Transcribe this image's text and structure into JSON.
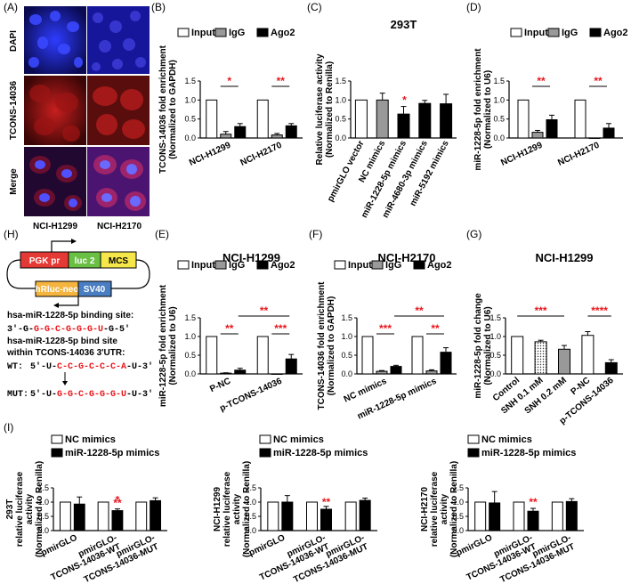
{
  "figure": {
    "panel_labels": {
      "A": "(A)",
      "B": "(B)",
      "C": "(C)",
      "D": "(D)",
      "E": "(E)",
      "F": "(F)",
      "G": "(G)",
      "H": "(H)",
      "I": "(I)"
    },
    "micrographs": {
      "rows": [
        "DAPI",
        "TCONS-14036",
        "Merge"
      ],
      "cols": [
        "NCI-H1299",
        "NCI-H2170"
      ]
    },
    "construct": {
      "top_boxes": [
        "PGK pr",
        "luc 2",
        "MCS"
      ],
      "bottom_boxes": [
        "hRluc-neo",
        "SV40"
      ],
      "line1": "hsa-miR-1228-5p binding site:",
      "line2_pre": "3'-G-",
      "line2_red": "G-G-C-G-G-G-U",
      "line2_post": "-G-5'",
      "line3": "hsa-miR-1228-5p bind site",
      "line4": "within TCONS-14036 3'UTR:",
      "wt_label": "WT:",
      "wt_pre": "5'-U-",
      "wt_red": "C-C-G-C-C-C-A",
      "wt_post": "-U-3'",
      "mut_label": "MUT:",
      "mut_pre": "5'-U-",
      "mut_red": "G-G-C-G-G-G-U",
      "mut_post": "-U-3'"
    }
  },
  "chart_data": [
    {
      "id": "B",
      "type": "bar",
      "title": "",
      "ylabel": "TCONS-14036 fold enrichment (Normalized to GAPDH)",
      "ylim": [
        0,
        1.5
      ],
      "yticks": [
        "0.0",
        "0.5",
        "1.0",
        "1.5"
      ],
      "legend": [
        "Input",
        "IgG",
        "Ago2"
      ],
      "categories": [
        "NCI-H1299",
        "NCI-H2170"
      ],
      "series": [
        {
          "name": "Input",
          "values": [
            1.0,
            1.0
          ],
          "err": [
            0,
            0
          ]
        },
        {
          "name": "IgG",
          "values": [
            0.1,
            0.08
          ],
          "err": [
            0.07,
            0.04
          ]
        },
        {
          "name": "Ago2",
          "values": [
            0.3,
            0.32
          ],
          "err": [
            0.08,
            0.06
          ]
        }
      ],
      "annotations": [
        "*",
        "**"
      ]
    },
    {
      "id": "C",
      "type": "bar",
      "title": "293T",
      "ylabel": "Relative luciferase activity (Normalized to Renilla)",
      "ylim": [
        0,
        1.5
      ],
      "yticks": [
        "0.0",
        "0.5",
        "1.0",
        "1.5"
      ],
      "categories": [
        "pmirGLO vector",
        "NC mimics",
        "miR-1228-5p mimics",
        "miR-4680-3p mimics",
        "miR-5192 mimics"
      ],
      "values": [
        1.0,
        1.0,
        0.63,
        0.91,
        0.9
      ],
      "err": [
        0,
        0.18,
        0.2,
        0.08,
        0.25
      ],
      "annotations": [
        "*"
      ]
    },
    {
      "id": "D",
      "type": "bar",
      "title": "",
      "ylabel": "miR-1228-5p fold enrichment (Normalized to U6)",
      "ylim": [
        0,
        1.5
      ],
      "yticks": [
        "0.0",
        "0.5",
        "1.0",
        "1.5"
      ],
      "legend": [
        "Input",
        "IgG",
        "Ago2"
      ],
      "categories": [
        "NCI-H1299",
        "NCI-H2170"
      ],
      "series": [
        {
          "name": "Input",
          "values": [
            1.0,
            1.0
          ],
          "err": [
            0,
            0
          ]
        },
        {
          "name": "IgG",
          "values": [
            0.15,
            0.0
          ],
          "err": [
            0.05,
            0
          ]
        },
        {
          "name": "Ago2",
          "values": [
            0.48,
            0.26
          ],
          "err": [
            0.12,
            0.12
          ]
        }
      ],
      "annotations": [
        "**",
        "**"
      ]
    },
    {
      "id": "E",
      "type": "bar",
      "title": "NCI-H1299",
      "ylabel": "miR-1228-5p fold enrichment (Normalized to U6)",
      "ylim": [
        0,
        1.5
      ],
      "yticks": [
        "0.0",
        "0.5",
        "1.0",
        "1.5"
      ],
      "legend": [
        "Input",
        "IgG",
        "Ago2"
      ],
      "categories": [
        "P-NC",
        "p-TCONS-14036"
      ],
      "series": [
        {
          "name": "Input",
          "values": [
            1.0,
            1.0
          ],
          "err": [
            0,
            0
          ]
        },
        {
          "name": "IgG",
          "values": [
            0.02,
            0.0
          ],
          "err": [
            0.01,
            0
          ]
        },
        {
          "name": "Ago2",
          "values": [
            0.1,
            0.4
          ],
          "err": [
            0.05,
            0.12
          ]
        }
      ],
      "annotations": [
        "**",
        "***",
        "**"
      ]
    },
    {
      "id": "F",
      "type": "bar",
      "title": "NCI-H2170",
      "ylabel": "TCONS-14036 fold enrichment (Normalized to GAPDH)",
      "ylim": [
        0,
        1.5
      ],
      "yticks": [
        "0.0",
        "0.5",
        "1.0",
        "1.5"
      ],
      "legend": [
        "Input",
        "IgG",
        "Ago2"
      ],
      "categories": [
        "NC mimics",
        "miR-1228-5p mimics"
      ],
      "series": [
        {
          "name": "Input",
          "values": [
            1.0,
            1.0
          ],
          "err": [
            0,
            0
          ]
        },
        {
          "name": "IgG",
          "values": [
            0.07,
            0.08
          ],
          "err": [
            0.02,
            0.03
          ]
        },
        {
          "name": "Ago2",
          "values": [
            0.2,
            0.58
          ],
          "err": [
            0.03,
            0.12
          ]
        }
      ],
      "annotations": [
        "***",
        "**",
        "**"
      ]
    },
    {
      "id": "G",
      "type": "bar",
      "title": "NCI-H1299",
      "ylabel": "miR-1228-5p fold change (Normalized to U6)",
      "ylim": [
        0,
        1.5
      ],
      "yticks": [
        "0.0",
        "0.5",
        "1.0",
        "1.5"
      ],
      "categories": [
        "Control",
        "SNH 0.1 mM",
        "SNH 0.2 mM",
        "P-NC",
        "p-TCONS-14036"
      ],
      "values": [
        1.0,
        0.86,
        0.66,
        1.03,
        0.3
      ],
      "err": [
        0,
        0.04,
        0.1,
        0.1,
        0.08
      ],
      "annotations": [
        "***",
        "****"
      ]
    },
    {
      "id": "I1",
      "type": "bar",
      "title": "",
      "ylabel": "293T relative luciferase activity (Normalized to Renilla)",
      "ylim": [
        0,
        1.5
      ],
      "yticks": [
        "0.0",
        "0.5",
        "1.0",
        "1.5"
      ],
      "legend": [
        "NC mimics",
        "miR-1228-5p mimics"
      ],
      "categories": [
        "pmirGLO",
        "pmirGLO-TCONS-14036-WT",
        "pmirGLO-TCONS-14036-MUT"
      ],
      "series": [
        {
          "name": "NC mimics",
          "values": [
            1.0,
            1.0,
            1.0
          ],
          "err": [
            0,
            0,
            0
          ]
        },
        {
          "name": "miR-1228-5p mimics",
          "values": [
            0.93,
            0.7,
            1.05
          ],
          "err": [
            0.25,
            0.06,
            0.1
          ]
        }
      ],
      "annotations": [
        "*",
        "**"
      ]
    },
    {
      "id": "I2",
      "type": "bar",
      "title": "",
      "ylabel": "NCI-H1299 relative luciferase activity (Normalized to Renilla)",
      "ylim": [
        0,
        1.5
      ],
      "yticks": [
        "0.0",
        "0.5",
        "1.0",
        "1.5"
      ],
      "legend": [
        "NC mimics",
        "miR-1228-5p mimics"
      ],
      "categories": [
        "pmirGLO",
        "pmirGLO-TCONS-14036-WT",
        "pmirGLO-TCONS-14036-MUT"
      ],
      "series": [
        {
          "name": "NC mimics",
          "values": [
            1.0,
            1.0,
            1.0
          ],
          "err": [
            0,
            0,
            0
          ]
        },
        {
          "name": "miR-1228-5p mimics",
          "values": [
            1.0,
            0.75,
            1.06
          ],
          "err": [
            0.23,
            0.1,
            0.08
          ]
        }
      ],
      "annotations": [
        "**"
      ]
    },
    {
      "id": "I3",
      "type": "bar",
      "title": "",
      "ylabel": "NCI-H2170 relative luciferase activity (Normalized to Renilla)",
      "ylim": [
        0,
        1.5
      ],
      "yticks": [
        "0.0",
        "0.5",
        "1.0",
        "1.5"
      ],
      "legend": [
        "NC mimics",
        "miR-1228-5p mimics"
      ],
      "categories": [
        "pmirGLO",
        "pmirGLO-TCONS-14036-WT",
        "pmirGLO-TCONS-14036-MUT"
      ],
      "series": [
        {
          "name": "NC mimics",
          "values": [
            1.0,
            1.0,
            1.0
          ],
          "err": [
            0,
            0,
            0
          ]
        },
        {
          "name": "miR-1228-5p mimics",
          "values": [
            0.97,
            0.68,
            1.02
          ],
          "err": [
            0.4,
            0.1,
            0.1
          ]
        }
      ],
      "annotations": [
        "**"
      ]
    }
  ]
}
